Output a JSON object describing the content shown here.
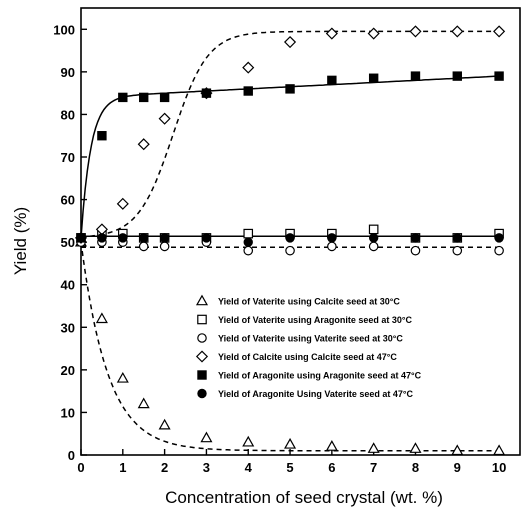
{
  "chart_data": {
    "type": "scatter",
    "title": "",
    "xlabel": "Concentration of seed crystal (wt. %)",
    "ylabel": "Yield (%)",
    "xlim": [
      0,
      10.5
    ],
    "ylim": [
      0,
      105
    ],
    "xticks": [
      0,
      1,
      2,
      3,
      4,
      5,
      6,
      7,
      8,
      9,
      10
    ],
    "yticks": [
      0,
      10,
      20,
      30,
      40,
      50,
      60,
      70,
      80,
      90,
      100
    ],
    "grid": false,
    "legend_position": "center-right",
    "series": [
      {
        "name": "Yield of Vaterite using Calcite seed at 30°C",
        "marker": "open-triangle",
        "line": "dashed",
        "x": [
          0,
          0.5,
          1,
          1.5,
          2,
          3,
          4,
          5,
          6,
          7,
          8,
          9,
          10
        ],
        "y": [
          50,
          32,
          18,
          12,
          7,
          4,
          3,
          2.5,
          2,
          1.5,
          1.5,
          1,
          1
        ]
      },
      {
        "name": "Yield of Vaterite using Aragonite seed at 30°C",
        "marker": "open-square",
        "line": "solid",
        "x": [
          0,
          0.5,
          1,
          1.5,
          2,
          3,
          4,
          5,
          6,
          7,
          8,
          9,
          10
        ],
        "y": [
          51,
          52,
          52,
          51,
          51,
          51,
          52,
          52,
          52,
          53,
          51,
          51,
          52
        ]
      },
      {
        "name": "Yield of Vaterite using Vaterite seed at 30°C",
        "marker": "open-circle",
        "line": "dashed",
        "x": [
          0,
          0.5,
          1,
          1.5,
          2,
          3,
          4,
          5,
          6,
          7,
          8,
          9,
          10
        ],
        "y": [
          50,
          50,
          50,
          49,
          49,
          50,
          48,
          48,
          49,
          49,
          48,
          48,
          48
        ]
      },
      {
        "name": "Yield of Calcite using Calcite seed at 47°C",
        "marker": "open-diamond",
        "line": "dashed",
        "x": [
          0,
          0.5,
          1,
          1.5,
          2,
          3,
          4,
          5,
          6,
          7,
          8,
          9,
          10
        ],
        "y": [
          51,
          53,
          59,
          73,
          79,
          85,
          91,
          97,
          99,
          99,
          99.5,
          99.5,
          99.5
        ]
      },
      {
        "name": "Yield of Aragonite using Aragonite seed at 47°C",
        "marker": "filled-square",
        "line": "solid",
        "x": [
          0,
          0.5,
          1,
          1.5,
          2,
          3,
          4,
          5,
          6,
          7,
          8,
          9,
          10
        ],
        "y": [
          51,
          75,
          84,
          84,
          84,
          85,
          85.5,
          86,
          88,
          88.5,
          89,
          89,
          89
        ]
      },
      {
        "name": "Yield of Aragonite Using Vaterite seed at 47°C",
        "marker": "filled-circle",
        "line": "none",
        "x": [
          0,
          0.5,
          1,
          1.5,
          2,
          3,
          4,
          5,
          6,
          7,
          8,
          9,
          10
        ],
        "y": [
          51,
          51,
          51,
          51,
          51,
          51,
          50,
          51,
          51,
          51,
          51,
          51,
          51
        ]
      }
    ]
  }
}
